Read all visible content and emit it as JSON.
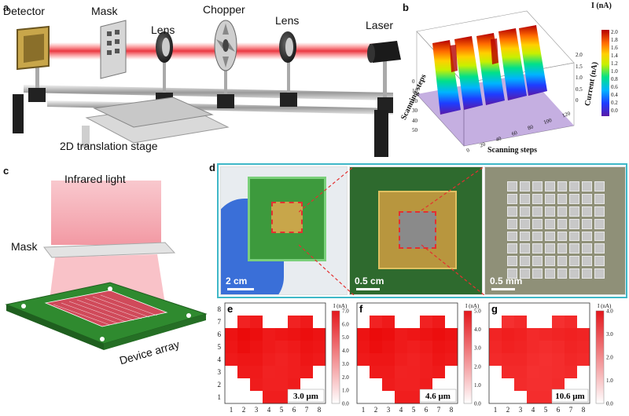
{
  "panel_a": {
    "letter": "a",
    "labels": {
      "detector": "Detector",
      "mask": "Mask",
      "lens1": "Lens",
      "chopper": "Chopper",
      "lens2": "Lens",
      "laser": "Laser",
      "stage": "2D translation stage"
    }
  },
  "panel_b": {
    "letter": "b",
    "colorbar_title": "I (nA)",
    "colorbar_ticks": [
      "2.0",
      "1.8",
      "1.6",
      "1.4",
      "1.2",
      "1.0",
      "0.8",
      "0.6",
      "0.4",
      "0.2",
      "0.0"
    ],
    "x_axis_label": "Scanning steps",
    "y_axis_label": "Scanning steps",
    "z_axis_label": "Current (nA)",
    "x_ticks": [
      "0",
      "20",
      "40",
      "60",
      "80",
      "100",
      "120"
    ],
    "y_ticks": [
      "0",
      "10",
      "20",
      "30",
      "40",
      "50"
    ],
    "z_ticks": [
      "0",
      "0.5",
      "1.0",
      "1.5",
      "2.0"
    ]
  },
  "panel_c": {
    "letter": "c",
    "labels": {
      "infrared": "Infrared light",
      "mask": "Mask",
      "device": "Device array"
    }
  },
  "panel_d": {
    "letter": "d",
    "scale_bars": [
      "2 cm",
      "0.5 cm",
      "0.5 mm"
    ]
  },
  "heatmaps": [
    {
      "letter": "e",
      "wavelength": "3.0 μm",
      "cb_title": "I (nA)",
      "cb_ticks": [
        "7.0",
        "6.0",
        "5.0",
        "4.0",
        "3.0",
        "2.0",
        "1.0",
        "0.0"
      ],
      "vmax": 7.0,
      "x_ticks": [
        "1",
        "2",
        "3",
        "4",
        "5",
        "6",
        "7",
        "8"
      ],
      "y_ticks": [
        "1",
        "2",
        "3",
        "4",
        "5",
        "6",
        "7",
        "8"
      ],
      "show_y_ticks": true
    },
    {
      "letter": "f",
      "wavelength": "4.6 μm",
      "cb_title": "I (nA)",
      "cb_ticks": [
        "5.0",
        "4.0",
        "3.0",
        "2.0",
        "1.0",
        "0.0"
      ],
      "vmax": 5.0,
      "x_ticks": [
        "1",
        "2",
        "3",
        "4",
        "5",
        "6",
        "7",
        "8"
      ],
      "y_ticks": [],
      "show_y_ticks": false
    },
    {
      "letter": "g",
      "wavelength": "10.6 μm",
      "cb_title": "I (nA)",
      "cb_ticks": [
        "4.0",
        "3.0",
        "2.0",
        "1.0",
        "0.0"
      ],
      "vmax": 4.0,
      "x_ticks": [
        "1",
        "2",
        "3",
        "4",
        "5",
        "6",
        "7",
        "8"
      ],
      "y_ticks": [],
      "show_y_ticks": false
    }
  ],
  "colors": {
    "laser": "#e8202a",
    "board_green": "#2f8a2f",
    "frame_teal": "#3fb8c8",
    "heat_red": "#e4161b"
  }
}
